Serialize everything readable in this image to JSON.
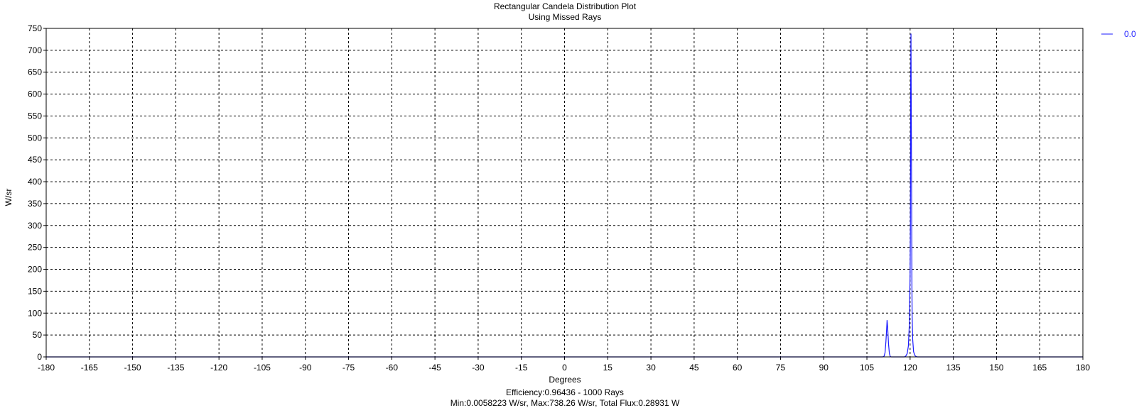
{
  "chart_data": {
    "type": "line",
    "title": "Rectangular Candela Distribution Plot",
    "subtitle": "Using Missed Rays",
    "xlabel": "Degrees",
    "ylabel": "W/sr",
    "footer_lines": [
      "Efficiency:0.96436 - 1000 Rays",
      "Min:0.0058223 W/sr, Max:738.26 W/sr, Total Flux:0.28931 W"
    ],
    "xlim": [
      -180,
      180
    ],
    "ylim": [
      0,
      750
    ],
    "xticks": [
      -180,
      -165,
      -150,
      -135,
      -120,
      -105,
      -90,
      -75,
      -60,
      -45,
      -30,
      -15,
      0,
      15,
      30,
      45,
      60,
      75,
      90,
      105,
      120,
      135,
      150,
      165,
      180
    ],
    "yticks": [
      0,
      50,
      100,
      150,
      200,
      250,
      300,
      350,
      400,
      450,
      500,
      550,
      600,
      650,
      700,
      750
    ],
    "grid": true,
    "grid_style": "dashed",
    "legend_position": "top-right",
    "series": [
      {
        "name": "0.0",
        "color": "#1a1aff",
        "points": [
          [
            -180,
            0
          ],
          [
            100,
            0
          ],
          [
            110.5,
            0
          ],
          [
            111.0,
            2
          ],
          [
            111.3,
            10
          ],
          [
            111.6,
            35
          ],
          [
            111.9,
            70
          ],
          [
            112.0,
            84
          ],
          [
            112.2,
            68
          ],
          [
            112.5,
            30
          ],
          [
            112.8,
            8
          ],
          [
            113.1,
            1
          ],
          [
            113.5,
            0
          ],
          [
            118,
            0
          ],
          [
            118.5,
            2
          ],
          [
            119.0,
            8
          ],
          [
            119.4,
            25
          ],
          [
            119.7,
            70
          ],
          [
            119.9,
            150
          ],
          [
            120.0,
            185
          ],
          [
            120.1,
            300
          ],
          [
            120.2,
            625
          ],
          [
            120.3,
            738
          ],
          [
            120.4,
            560
          ],
          [
            120.5,
            410
          ],
          [
            120.6,
            190
          ],
          [
            120.7,
            95
          ],
          [
            120.9,
            40
          ],
          [
            121.2,
            12
          ],
          [
            121.6,
            4
          ],
          [
            122.0,
            1
          ],
          [
            122.5,
            0
          ],
          [
            180,
            0
          ]
        ]
      }
    ]
  }
}
